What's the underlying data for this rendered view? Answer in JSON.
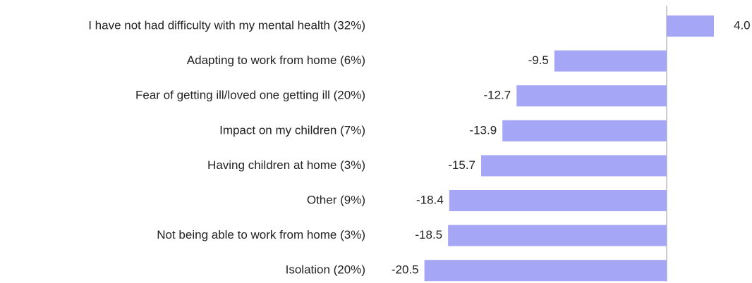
{
  "chart_data": {
    "type": "bar",
    "orientation": "horizontal",
    "categories": [
      "I have not had difficulty with my mental health (32%)",
      "Adapting to work from home (6%)",
      "Fear of getting ill/loved one getting ill (20%)",
      "Impact on my children (7%)",
      "Having children at home (3%)",
      "Other (9%)",
      "Not being able to work from home (3%)",
      "Isolation (20%)"
    ],
    "values": [
      4.0,
      -9.5,
      -12.7,
      -13.9,
      -15.7,
      -18.4,
      -18.5,
      -20.5
    ],
    "value_labels": [
      "4.0",
      "-9.5",
      "-12.7",
      "-13.9",
      "-15.7",
      "-18.4",
      "-18.5",
      "-20.5"
    ],
    "color": "#a5a6f6",
    "xlim": [
      -21,
      4.5
    ]
  }
}
